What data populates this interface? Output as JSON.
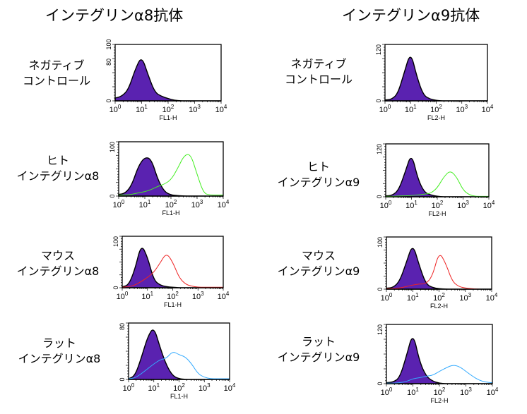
{
  "titles": {
    "left": "インテグリンα8抗体",
    "right": "インテグリンα9抗体"
  },
  "row_labels": {
    "left": [
      [
        "ネガティブ",
        "コントロール"
      ],
      [
        "ヒト",
        "インテグリンα8"
      ],
      [
        "マウス",
        "インテグリンα8"
      ],
      [
        "ラット",
        "インテグリンα8"
      ]
    ],
    "right": [
      [
        "ネガティブ",
        "コントロール"
      ],
      [
        "ヒト",
        "インテグリンα9"
      ],
      [
        "マウス",
        "インテグリンα9"
      ],
      [
        "ラット",
        "インテグリンα9"
      ]
    ]
  },
  "colors": {
    "control_fill": "#5a22b0",
    "control_line": "#000000",
    "green": "#44ee22",
    "red": "#ee2222",
    "blue": "#33aaff"
  },
  "chart_data": [
    {
      "type": "area",
      "id": "a8-control",
      "xlabel": "FL1-H",
      "xscale": "log",
      "xlim": [
        1,
        10000
      ],
      "xticks": [
        "10^0",
        "10^1",
        "10^2",
        "10^3",
        "10^4"
      ],
      "ylim": [
        0,
        100
      ],
      "yticks": [
        "0",
        "100"
      ],
      "yticks_extra": "80",
      "log10_x": [
        0,
        0.25,
        0.5,
        0.75,
        1,
        1.25,
        1.5,
        1.75,
        2,
        2.25,
        2.5,
        2.75,
        3,
        3.25,
        3.5,
        3.75,
        4
      ],
      "series": [
        {
          "name": "control",
          "color": "control",
          "values": [
            5,
            8,
            20,
            55,
            80,
            45,
            15,
            8,
            4,
            1,
            0,
            0,
            0,
            0,
            0,
            0,
            0
          ]
        }
      ]
    },
    {
      "type": "area",
      "id": "a8-human",
      "xlabel": "FL1-H",
      "xscale": "log",
      "xlim": [
        1,
        10000
      ],
      "xticks": [
        "10^0",
        "10^1",
        "10^2",
        "10^3",
        "10^4"
      ],
      "ylim": [
        0,
        100
      ],
      "yticks": [
        "0",
        "100"
      ],
      "log10_x": [
        0,
        0.25,
        0.5,
        0.75,
        1,
        1.25,
        1.5,
        1.75,
        2,
        2.25,
        2.5,
        2.75,
        3,
        3.25,
        3.5,
        3.75,
        4
      ],
      "series": [
        {
          "name": "control",
          "color": "control",
          "values": [
            3,
            5,
            20,
            55,
            72,
            68,
            30,
            8,
            2,
            1,
            0,
            0,
            0,
            0,
            0,
            0,
            0
          ]
        },
        {
          "name": "human integrin α8",
          "color": "green",
          "values": [
            2,
            2,
            3,
            6,
            8,
            12,
            18,
            22,
            30,
            50,
            75,
            78,
            40,
            5,
            2,
            2,
            2
          ]
        }
      ]
    },
    {
      "type": "area",
      "id": "a8-mouse",
      "xlabel": "FL1-H",
      "xscale": "log",
      "xlim": [
        1,
        10000
      ],
      "xticks": [
        "10^0",
        "10^1",
        "10^2",
        "10^3",
        "10^4"
      ],
      "ylim": [
        0,
        100
      ],
      "yticks": [
        "0",
        "100"
      ],
      "log10_x": [
        0,
        0.25,
        0.5,
        0.75,
        1,
        1.25,
        1.5,
        1.75,
        2,
        2.25,
        2.5,
        2.75,
        3,
        3.25,
        3.5,
        3.75,
        4
      ],
      "series": [
        {
          "name": "control",
          "color": "control",
          "values": [
            2,
            5,
            35,
            85,
            60,
            15,
            5,
            2,
            1,
            0,
            0,
            0,
            0,
            0,
            0,
            0,
            0
          ]
        },
        {
          "name": "mouse integrin α8",
          "color": "red",
          "values": [
            1,
            2,
            5,
            12,
            20,
            30,
            48,
            68,
            50,
            20,
            7,
            3,
            1,
            1,
            1,
            1,
            1
          ]
        }
      ]
    },
    {
      "type": "area",
      "id": "a8-rat",
      "xlabel": "FL1-H",
      "xscale": "log",
      "xlim": [
        1,
        10000
      ],
      "xticks": [
        "10^0",
        "10^1",
        "10^2",
        "10^3",
        "10^4"
      ],
      "ylim": [
        0,
        80
      ],
      "yticks": [
        "0",
        "80"
      ],
      "log10_x": [
        0,
        0.25,
        0.5,
        0.75,
        1,
        1.25,
        1.5,
        1.75,
        2,
        2.25,
        2.5,
        2.75,
        3,
        3.25,
        3.5,
        3.75,
        4
      ],
      "series": [
        {
          "name": "control",
          "color": "control",
          "values": [
            1,
            5,
            30,
            60,
            75,
            45,
            20,
            5,
            1,
            0,
            0,
            0,
            0,
            0,
            0,
            0,
            0
          ]
        },
        {
          "name": "rat integrin α8",
          "color": "blue",
          "values": [
            1,
            2,
            8,
            15,
            22,
            28,
            30,
            40,
            35,
            32,
            22,
            8,
            3,
            1,
            1,
            1,
            1
          ]
        }
      ]
    },
    {
      "type": "area",
      "id": "a9-control",
      "xlabel": "FL2-H",
      "xscale": "log",
      "xlim": [
        1,
        10000
      ],
      "xticks": [
        "10^0",
        "10^1",
        "10^2",
        "10^3",
        "10^4"
      ],
      "ylim": [
        0,
        120
      ],
      "yticks": [
        "0",
        "120"
      ],
      "log10_x": [
        0,
        0.25,
        0.5,
        0.75,
        1,
        1.25,
        1.5,
        1.75,
        2,
        2.25,
        2.5,
        2.75,
        3,
        3.25,
        3.5,
        3.75,
        4
      ],
      "series": [
        {
          "name": "control",
          "color": "control",
          "values": [
            2,
            3,
            15,
            60,
            105,
            50,
            12,
            4,
            1,
            0,
            0,
            0,
            0,
            0,
            0,
            0,
            0
          ]
        }
      ]
    },
    {
      "type": "area",
      "id": "a9-human",
      "xlabel": "FL2-H",
      "xscale": "log",
      "xlim": [
        1,
        10000
      ],
      "xticks": [
        "10^0",
        "10^1",
        "10^2",
        "10^3",
        "10^4"
      ],
      "ylim": [
        0,
        120
      ],
      "yticks": [
        "0",
        "120"
      ],
      "log10_x": [
        0,
        0.25,
        0.5,
        0.75,
        1,
        1.25,
        1.5,
        1.75,
        2,
        2.25,
        2.5,
        2.75,
        3,
        3.25,
        3.5,
        3.75,
        4
      ],
      "series": [
        {
          "name": "control",
          "color": "control",
          "values": [
            2,
            3,
            15,
            55,
            100,
            40,
            10,
            4,
            1,
            0,
            0,
            0,
            0,
            0,
            0,
            0,
            0
          ]
        },
        {
          "name": "human integrin α9",
          "color": "green",
          "values": [
            1,
            1,
            2,
            2,
            3,
            4,
            6,
            8,
            20,
            45,
            60,
            45,
            15,
            4,
            1,
            1,
            1
          ]
        }
      ]
    },
    {
      "type": "area",
      "id": "a9-mouse",
      "xlabel": "FL2-H",
      "xscale": "log",
      "xlim": [
        1,
        10000
      ],
      "xticks": [
        "10^0",
        "10^1",
        "10^2",
        "10^3",
        "10^4"
      ],
      "ylim": [
        0,
        100
      ],
      "yticks": [
        "0",
        "100"
      ],
      "log10_x": [
        0,
        0.25,
        0.5,
        0.75,
        1,
        1.25,
        1.5,
        1.75,
        2,
        2.25,
        2.5,
        2.75,
        3,
        3.25,
        3.5,
        3.75,
        4
      ],
      "series": [
        {
          "name": "control",
          "color": "control",
          "values": [
            2,
            3,
            15,
            50,
            88,
            45,
            10,
            3,
            1,
            0,
            0,
            0,
            0,
            0,
            0,
            0,
            0
          ]
        },
        {
          "name": "mouse integrin α9",
          "color": "red",
          "values": [
            1,
            1,
            2,
            5,
            8,
            10,
            10,
            25,
            72,
            50,
            15,
            5,
            2,
            1,
            0,
            0,
            0
          ]
        }
      ]
    },
    {
      "type": "area",
      "id": "a9-rat",
      "xlabel": "FL2-H",
      "xscale": "log",
      "xlim": [
        1,
        10000
      ],
      "xticks": [
        "10^0",
        "10^1",
        "10^2",
        "10^3",
        "10^4"
      ],
      "ylim": [
        0,
        120
      ],
      "yticks": [
        "0",
        "120"
      ],
      "log10_x": [
        0,
        0.25,
        0.5,
        0.75,
        1,
        1.25,
        1.5,
        1.75,
        2,
        2.25,
        2.5,
        2.75,
        3,
        3.25,
        3.5,
        3.75,
        4
      ],
      "series": [
        {
          "name": "control",
          "color": "control",
          "values": [
            2,
            3,
            12,
            55,
            105,
            45,
            15,
            5,
            1,
            0,
            0,
            0,
            0,
            0,
            0,
            0,
            0
          ]
        },
        {
          "name": "rat integrin α9",
          "color": "blue",
          "values": [
            1,
            1,
            2,
            4,
            10,
            12,
            15,
            17,
            25,
            32,
            38,
            35,
            25,
            15,
            7,
            3,
            2
          ]
        }
      ]
    }
  ]
}
